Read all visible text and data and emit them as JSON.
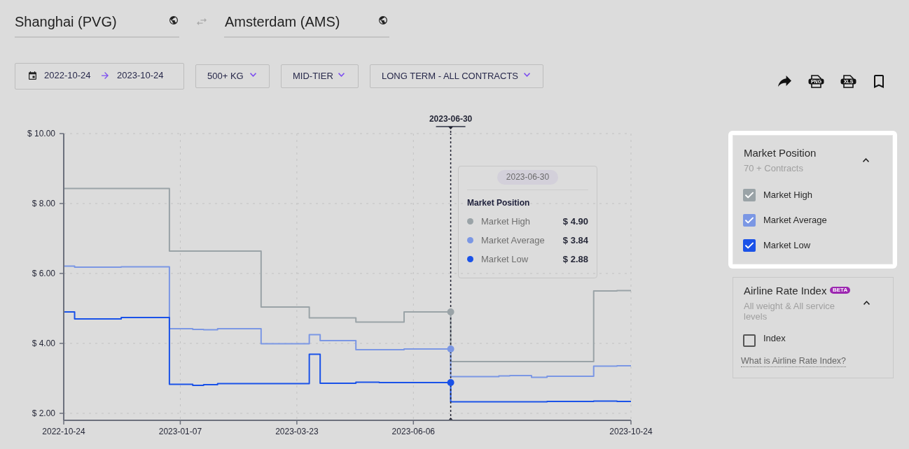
{
  "chart_data": {
    "type": "step",
    "legend_title": "Market Position",
    "legend": "right",
    "annotations": [
      "Shanghai (PVG)",
      "Amsterdam (AMS)",
      "2022-10-24",
      "2023-10-24",
      "500+ KG",
      "MID-TIER",
      "LONG TERM - ALL CONTRACTS",
      "70 + Contracts",
      "Airline Rate Index",
      "BETA",
      "All weight & All service levels",
      "Index",
      "What is Airline Rate Index?",
      "PNG",
      "XLS",
      "$ 4.90",
      "$ 3.84",
      "$ 2.88"
    ],
    "series": [
      {
        "name": "Market High",
        "color": "#9aa3a7",
        "x": [
          "2022-10-24",
          "2022-12-31",
          "2023-02-28",
          "2023-03-31",
          "2023-04-30",
          "2023-05-31",
          "2023-06-30",
          "2023-09-30",
          "2023-10-15",
          "2023-10-24"
        ],
        "values": [
          8.43,
          8.43,
          6.64,
          5.04,
          4.73,
          4.61,
          4.9,
          3.48,
          5.5,
          5.51
        ]
      },
      {
        "name": "Market Average",
        "color": "#7b97e4",
        "x": [
          "2022-10-24",
          "2022-10-31",
          "2022-11-30",
          "2022-12-31",
          "2023-01-15",
          "2023-01-22",
          "2023-01-31",
          "2023-02-28",
          "2023-03-31",
          "2023-04-07",
          "2023-04-30",
          "2023-05-31",
          "2023-06-30",
          "2023-07-31",
          "2023-08-07",
          "2023-08-21",
          "2023-08-31",
          "2023-09-30",
          "2023-10-15",
          "2023-10-24"
        ],
        "values": [
          6.21,
          6.21,
          6.18,
          6.19,
          4.42,
          4.4,
          4.39,
          4.42,
          3.99,
          4.25,
          4.08,
          3.82,
          3.84,
          3.05,
          3.07,
          3.08,
          3.03,
          3.06,
          3.35,
          3.36
        ]
      },
      {
        "name": "Market Low",
        "color": "#1a52e8",
        "x": [
          "2022-10-24",
          "2022-10-31",
          "2022-11-30",
          "2022-12-31",
          "2023-01-15",
          "2023-01-22",
          "2023-01-31",
          "2023-03-31",
          "2023-04-07",
          "2023-04-30",
          "2023-05-15",
          "2023-06-30",
          "2023-08-31",
          "2023-09-30",
          "2023-10-15",
          "2023-10-24"
        ],
        "values": [
          4.9,
          4.9,
          4.7,
          4.74,
          2.83,
          2.8,
          2.82,
          2.85,
          3.69,
          2.86,
          2.89,
          2.88,
          2.33,
          2.34,
          2.35,
          2.34
        ]
      }
    ],
    "xlim": [
      "2022-10-24",
      "2023-10-24"
    ],
    "xticks": [
      "2022-10-24",
      "2023-01-07",
      "2023-03-23",
      "2023-06-06",
      "2023-10-24"
    ],
    "ylim": [
      1.8,
      10
    ],
    "yticks": [
      {
        "value": 2,
        "label": "$ 2.00"
      },
      {
        "value": 4,
        "label": "$ 4.00"
      },
      {
        "value": 6,
        "label": "$ 6.00"
      },
      {
        "value": 8,
        "label": "$ 8.00"
      },
      {
        "value": 10,
        "label": "$ 10.00"
      }
    ],
    "grid": true,
    "ref_lines": [
      {
        "axis": "x",
        "value": "2023-06-30",
        "label": "2023-06-30",
        "color": "#1f2130",
        "line_style": "dotted"
      }
    ]
  }
}
